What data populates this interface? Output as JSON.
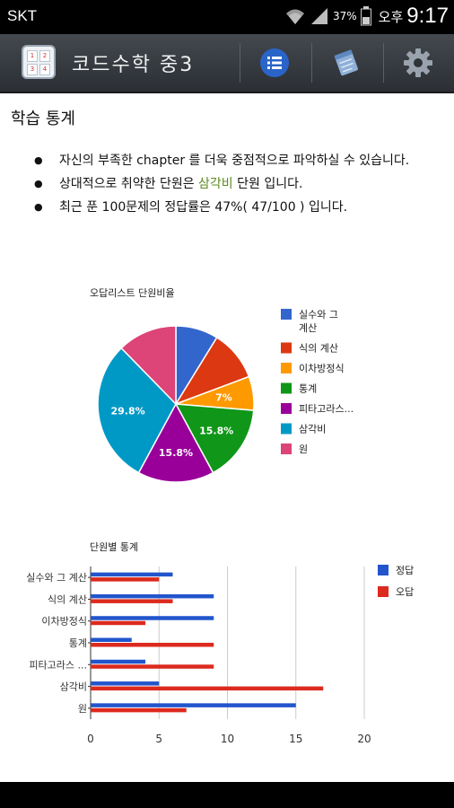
{
  "status_bar": {
    "carrier": "SKT",
    "battery": "37%",
    "ampm": "오후",
    "time": "9:17"
  },
  "app_bar": {
    "icon_text": [
      "1",
      "2",
      "3",
      "4"
    ],
    "title": "코드수학 중3",
    "actions": [
      "list-icon",
      "notebook-icon",
      "gear-icon"
    ]
  },
  "page": {
    "title": "학습 통계",
    "bullets": {
      "b1": "자신의 부족한 chapter 를 더욱 중점적으로 파악하실 수 있습니다.",
      "b2_pre": "상대적으로 취약한 단원은 ",
      "b2_highlight": "삼각비",
      "b2_post": " 단원 입니다.",
      "b3": "최근 푼 100문제의 정답률은 47%( 47/100 ) 입니다."
    }
  },
  "colors": {
    "accent": "#5c8a1e",
    "correct": "#2255cc",
    "wrong": "#dd2a1e"
  },
  "chart_data": [
    {
      "type": "pie",
      "title": "오답리스트 단원비율",
      "categories": [
        "실수와 그 계산",
        "식의 계산",
        "이차방정식",
        "통계",
        "피타고라스...",
        "삼각비",
        "원"
      ],
      "legend_labels": [
        "실수와 그 계산",
        "식의 계산",
        "이차방정식",
        "통계",
        "피타고라스...",
        "삼각비",
        "원"
      ],
      "values": [
        8.8,
        10.5,
        7.0,
        15.8,
        15.8,
        29.8,
        12.3
      ],
      "labels": [
        "",
        "",
        "7%",
        "15.8%",
        "15.8%",
        "29.8%",
        ""
      ],
      "colors": [
        "#3366cc",
        "#dc3912",
        "#ff9900",
        "#109618",
        "#990099",
        "#0099c6",
        "#dd4477"
      ],
      "legend": "right"
    },
    {
      "type": "bar",
      "orientation": "horizontal",
      "title": "단원별 통계",
      "categories": [
        "실수와 그 계산",
        "식의 계산",
        "이차방정식",
        "통계",
        "피타고라스 ...",
        "삼각비",
        "원"
      ],
      "series": [
        {
          "name": "정답",
          "values": [
            6,
            9,
            9,
            3,
            4,
            5,
            15
          ],
          "color": "#2255cc"
        },
        {
          "name": "오답",
          "values": [
            5,
            6,
            4,
            9,
            9,
            17,
            7
          ],
          "color": "#dd2a1e"
        }
      ],
      "xlim": [
        0,
        20
      ],
      "xticks": [
        "0",
        "5",
        "10",
        "15",
        "20"
      ],
      "grid": true,
      "legend": "top-right"
    }
  ]
}
